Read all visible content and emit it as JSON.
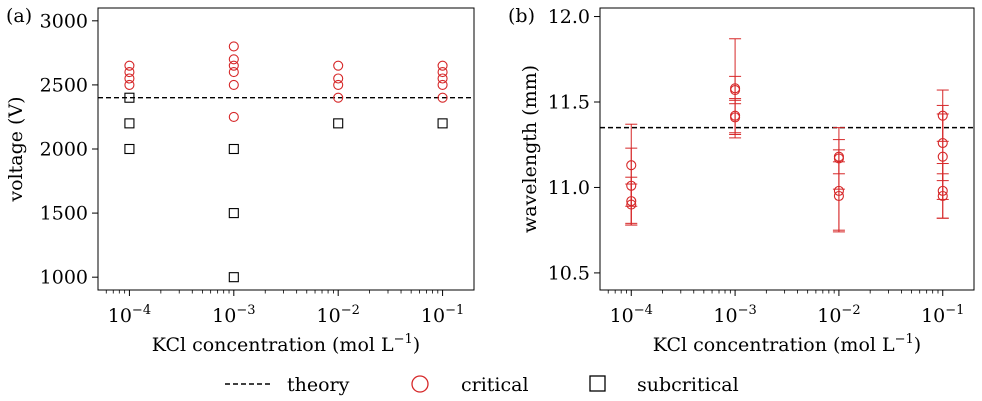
{
  "colors": {
    "critical": "#d62728",
    "subcritical": "#000000",
    "theory": "#000000",
    "axis": "#000000"
  },
  "chart_data": [
    {
      "panel_label": "(a)",
      "type": "scatter",
      "xscale": "log",
      "xlabel": "KCl concentration (mol L",
      "xlabel_sup": "−1",
      "xlabel_tail": ")",
      "ylabel": "voltage (V)",
      "xlim": [
        5e-05,
        0.2
      ],
      "ylim": [
        900,
        3100
      ],
      "x_ticks": [
        {
          "value": 0.0001,
          "base": "10",
          "exp": "−4"
        },
        {
          "value": 0.001,
          "base": "10",
          "exp": "−3"
        },
        {
          "value": 0.01,
          "base": "10",
          "exp": "−2"
        },
        {
          "value": 0.1,
          "base": "10",
          "exp": "−1"
        }
      ],
      "y_ticks": [
        {
          "value": 1000,
          "label": "1000"
        },
        {
          "value": 1500,
          "label": "1500"
        },
        {
          "value": 2000,
          "label": "2000"
        },
        {
          "value": 2500,
          "label": "2500"
        },
        {
          "value": 3000,
          "label": "3000"
        }
      ],
      "theory": 2400,
      "series": [
        {
          "name": "critical",
          "marker": "circle",
          "points": [
            [
              0.0001,
              2500
            ],
            [
              0.0001,
              2550
            ],
            [
              0.0001,
              2600
            ],
            [
              0.0001,
              2650
            ],
            [
              0.001,
              2250
            ],
            [
              0.001,
              2500
            ],
            [
              0.001,
              2600
            ],
            [
              0.001,
              2650
            ],
            [
              0.001,
              2700
            ],
            [
              0.001,
              2800
            ],
            [
              0.01,
              2400
            ],
            [
              0.01,
              2500
            ],
            [
              0.01,
              2550
            ],
            [
              0.01,
              2650
            ],
            [
              0.1,
              2400
            ],
            [
              0.1,
              2500
            ],
            [
              0.1,
              2550
            ],
            [
              0.1,
              2600
            ],
            [
              0.1,
              2650
            ]
          ]
        },
        {
          "name": "subcritical",
          "marker": "square",
          "points": [
            [
              0.0001,
              2000
            ],
            [
              0.0001,
              2200
            ],
            [
              0.0001,
              2400
            ],
            [
              0.001,
              1000
            ],
            [
              0.001,
              1500
            ],
            [
              0.001,
              2000
            ],
            [
              0.01,
              2200
            ],
            [
              0.1,
              2200
            ]
          ]
        }
      ]
    },
    {
      "panel_label": "(b)",
      "type": "scatter",
      "xscale": "log",
      "xlabel": "KCl concentration (mol L",
      "xlabel_sup": "−1",
      "xlabel_tail": ")",
      "ylabel": "wavelength (mm)",
      "xlim": [
        5e-05,
        0.2
      ],
      "ylim": [
        10.4,
        12.05
      ],
      "x_ticks": [
        {
          "value": 0.0001,
          "base": "10",
          "exp": "−4"
        },
        {
          "value": 0.001,
          "base": "10",
          "exp": "−3"
        },
        {
          "value": 0.01,
          "base": "10",
          "exp": "−2"
        },
        {
          "value": 0.1,
          "base": "10",
          "exp": "−1"
        }
      ],
      "y_ticks": [
        {
          "value": 10.5,
          "label": "10.5"
        },
        {
          "value": 11.0,
          "label": "11.0"
        },
        {
          "value": 11.5,
          "label": "11.5"
        },
        {
          "value": 12.0,
          "label": "12.0"
        }
      ],
      "theory": 11.35,
      "series": [
        {
          "name": "critical",
          "marker": "circle",
          "points": [
            {
              "x": 0.0001,
              "y": 10.9,
              "err": 0.12
            },
            {
              "x": 0.0001,
              "y": 10.92,
              "err": 0.14
            },
            {
              "x": 0.0001,
              "y": 11.01,
              "err": 0.22
            },
            {
              "x": 0.0001,
              "y": 11.13,
              "err": 0.24
            },
            {
              "x": 0.001,
              "y": 11.41,
              "err": 0.1
            },
            {
              "x": 0.001,
              "y": 11.42,
              "err": 0.1
            },
            {
              "x": 0.001,
              "y": 11.57,
              "err": 0.08
            },
            {
              "x": 0.001,
              "y": 11.58,
              "err": 0.29
            },
            {
              "x": 0.01,
              "y": 10.95,
              "err": 0.2
            },
            {
              "x": 0.01,
              "y": 10.98,
              "err": 0.24
            },
            {
              "x": 0.01,
              "y": 11.17,
              "err": 0.18
            },
            {
              "x": 0.01,
              "y": 11.18,
              "err": 0.1
            },
            {
              "x": 0.1,
              "y": 10.95,
              "err": 0.13
            },
            {
              "x": 0.1,
              "y": 10.98,
              "err": 0.16
            },
            {
              "x": 0.1,
              "y": 11.18,
              "err": 0.25
            },
            {
              "x": 0.1,
              "y": 11.26,
              "err": 0.22
            },
            {
              "x": 0.1,
              "y": 11.42,
              "err": 0.15
            }
          ]
        }
      ]
    }
  ],
  "legend": {
    "placement": "bottom-center",
    "items": [
      {
        "label": "theory",
        "marker": "dashed-line"
      },
      {
        "label": "critical",
        "marker": "circle"
      },
      {
        "label": "subcritical",
        "marker": "square"
      }
    ]
  }
}
